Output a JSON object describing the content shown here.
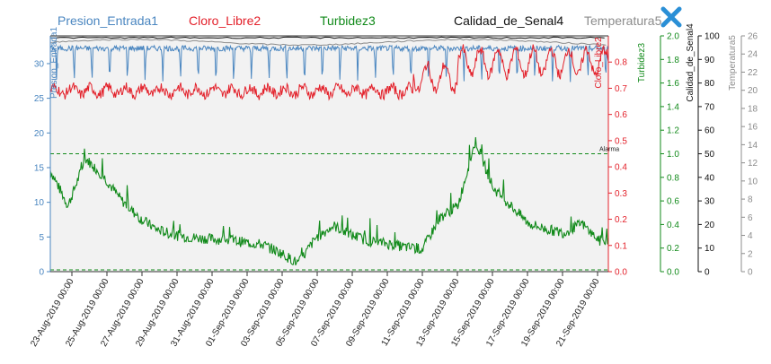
{
  "colors": {
    "presion": "#4a86c0",
    "cloro": "#e3202a",
    "turbidez": "#118a1a",
    "calidad": "#111111",
    "temperatura": "#8c8c8c",
    "close": "#2a8fd6",
    "plot_bg": "#f2f2f2"
  },
  "icons": {
    "close": "close-icon"
  },
  "chart_data": {
    "type": "line",
    "title": "",
    "series": [
      {
        "name": "Presion_Entrada1",
        "axis": "Presion_Entrada1",
        "color": "#4a86c0",
        "values_summary": "oscillating around 31-33 with daily dips to ~27"
      },
      {
        "name": "Cloro_Libre2",
        "axis": "Cloro_Libre2",
        "color": "#e3202a",
        "values_summary": "between 0.6 and 0.9"
      },
      {
        "name": "Turbidez3",
        "axis": "Turbidez3",
        "color": "#118a1a",
        "points": [
          [
            "2019-08-22",
            0.85
          ],
          [
            "2019-08-23",
            0.55
          ],
          [
            "2019-08-24",
            0.95
          ],
          [
            "2019-08-25",
            0.8
          ],
          [
            "2019-08-26",
            0.6
          ],
          [
            "2019-08-27",
            0.45
          ],
          [
            "2019-08-28",
            0.35
          ],
          [
            "2019-08-29",
            0.3
          ],
          [
            "2019-08-30",
            0.28
          ],
          [
            "2019-08-31",
            0.27
          ],
          [
            "2019-09-01",
            0.26
          ],
          [
            "2019-09-02",
            0.24
          ],
          [
            "2019-09-03",
            0.22
          ],
          [
            "2019-09-04",
            0.15
          ],
          [
            "2019-09-05",
            0.06
          ],
          [
            "2019-09-06",
            0.28
          ],
          [
            "2019-09-07",
            0.38
          ],
          [
            "2019-09-08",
            0.3
          ],
          [
            "2019-09-09",
            0.25
          ],
          [
            "2019-09-10",
            0.23
          ],
          [
            "2019-09-11",
            0.2
          ],
          [
            "2019-09-12",
            0.18
          ],
          [
            "2019-09-13",
            0.45
          ],
          [
            "2019-09-14",
            0.55
          ],
          [
            "2019-09-15",
            1.1
          ],
          [
            "2019-09-16",
            0.7
          ],
          [
            "2019-09-17",
            0.55
          ],
          [
            "2019-09-18",
            0.4
          ],
          [
            "2019-09-19",
            0.35
          ],
          [
            "2019-09-20",
            0.32
          ],
          [
            "2019-09-21",
            0.4
          ],
          [
            "2019-09-22",
            0.25
          ]
        ]
      },
      {
        "name": "Calidad_de_Senal4",
        "axis": "Calidad_de_Senal4",
        "color": "#111111",
        "values_summary": "constant near 100"
      },
      {
        "name": "Temperatura5",
        "axis": "Temperatura5",
        "color": "#8c8c8c",
        "values_summary": "constant near 24-25"
      }
    ],
    "threshold": {
      "label": "Alarma",
      "value": 17,
      "axis": "Presion_Entrada1"
    },
    "x_tick_labels": [
      "23-Aug-2019 00:00",
      "25-Aug-2019 00:00",
      "27-Aug-2019 00:00",
      "29-Aug-2019 00:00",
      "31-Aug-2019 00:00",
      "01-Sep-2019 00:00",
      "03-Sep-2019 00:00",
      "05-Sep-2019 00:00",
      "07-Sep-2019 00:00",
      "09-Sep-2019 00:00",
      "11-Sep-2019 00:00",
      "13-Sep-2019 00:00",
      "15-Sep-2019 00:00",
      "17-Sep-2019 00:00",
      "19-Sep-2019 00:00",
      "21-Sep-2019 00:00"
    ],
    "axes": [
      {
        "name": "Presion_Entrada1",
        "title": "Presion_Entrada1",
        "ylim": [
          0,
          34
        ],
        "ticks": [
          "0",
          "5",
          "10",
          "15",
          "20",
          "25",
          "30"
        ],
        "color": "#4a86c0"
      },
      {
        "name": "Cloro_Libre2",
        "title": "Cloro_Libre2",
        "ylim": [
          0,
          0.9
        ],
        "ticks": [
          "0.0",
          "0.1",
          "0.2",
          "0.3",
          "0.4",
          "0.5",
          "0.6",
          "0.7",
          "0.8"
        ],
        "color": "#e3202a"
      },
      {
        "name": "Turbidez3",
        "title": "Turbidez3",
        "ylim": [
          0,
          2.0
        ],
        "ticks": [
          "0.0",
          "0.2",
          "0.4",
          "0.6",
          "0.8",
          "1.0",
          "1.2",
          "1.4",
          "1.6",
          "1.8",
          "2.0"
        ],
        "color": "#118a1a"
      },
      {
        "name": "Calidad_de_Senal4",
        "title": "Calidad_de_Senal4",
        "ylim": [
          0,
          100
        ],
        "ticks": [
          "0",
          "10",
          "20",
          "30",
          "40",
          "50",
          "60",
          "70",
          "80",
          "90",
          "100"
        ],
        "color": "#111111"
      },
      {
        "name": "Temperatura5",
        "title": "Temperatura5",
        "ylim": [
          0,
          26
        ],
        "ticks": [
          "0",
          "2",
          "4",
          "6",
          "8",
          "10",
          "12",
          "14",
          "16",
          "18",
          "20",
          "22",
          "24",
          "26"
        ],
        "color": "#8c8c8c"
      }
    ],
    "grid": false,
    "legend": "top"
  }
}
